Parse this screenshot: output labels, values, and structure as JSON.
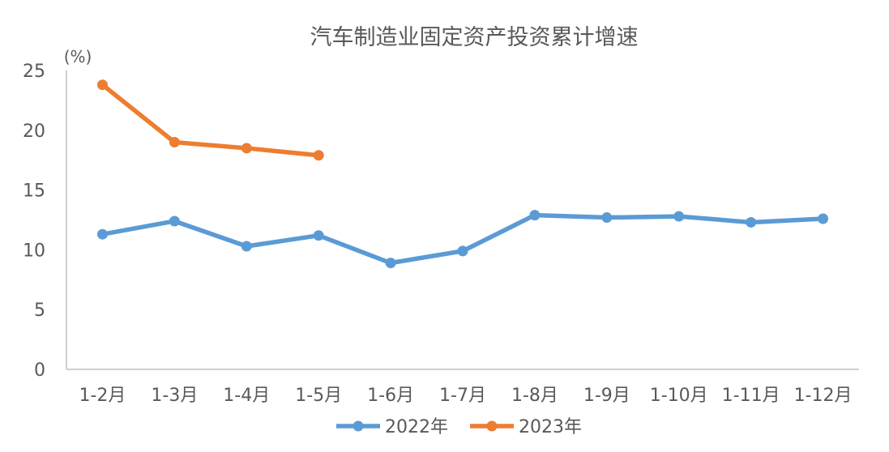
{
  "chart_data": {
    "type": "line",
    "title": "汽车制造业固定资产投资累计增速",
    "unit": "(%)",
    "categories": [
      "1-2月",
      "1-3月",
      "1-4月",
      "1-5月",
      "1-6月",
      "1-7月",
      "1-8月",
      "1-9月",
      "1-10月",
      "1-11月",
      "1-12月"
    ],
    "ylim": [
      0,
      25
    ],
    "yticks": [
      "0",
      "5",
      "10",
      "15",
      "20",
      "25"
    ],
    "grid": false,
    "legend_position": "bottom",
    "series": [
      {
        "name": "2022年",
        "color": "#5B9BD5",
        "values": [
          11.3,
          12.4,
          10.3,
          11.2,
          8.9,
          9.9,
          12.9,
          12.7,
          12.8,
          12.3,
          12.6
        ]
      },
      {
        "name": "2023年",
        "color": "#ED7D31",
        "values": [
          23.8,
          19.0,
          18.5,
          17.9,
          null,
          null,
          null,
          null,
          null,
          null,
          null
        ]
      }
    ]
  }
}
